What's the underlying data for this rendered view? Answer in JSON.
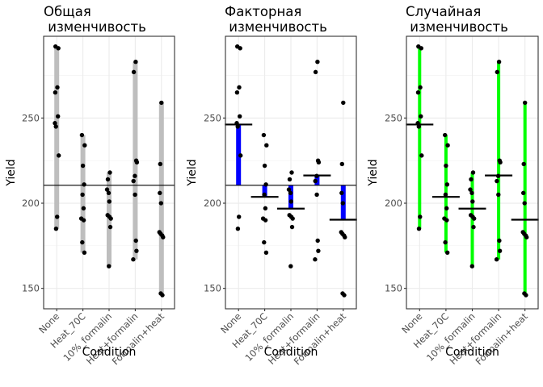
{
  "chart_data": {
    "type": "scatter",
    "categories": [
      "None",
      "Heat_70C",
      "10%_formalin",
      "Heat+formalin",
      "Formalin+heat"
    ],
    "xlabel": "Condition",
    "ylabel": "Yield",
    "ylim": [
      138,
      298
    ],
    "yticks": [
      150,
      200,
      250
    ],
    "grand_mean": 210.5,
    "panels": [
      {
        "title_line1": "Общая",
        "title_line2": " изменчивость",
        "variant": "total",
        "segment_color": "#bebebe"
      },
      {
        "title_line1": "Факторная",
        "title_line2": " изменчивость",
        "variant": "factor",
        "segment_color": "#0000ff"
      },
      {
        "title_line1": "Случайная",
        "title_line2": " изменчивость",
        "variant": "random",
        "segment_color": "#00ff00"
      }
    ],
    "group_means": [
      246.2,
      203.7,
      196.8,
      216.3,
      190.3
    ],
    "points": [
      [
        292,
        291,
        268,
        265,
        251,
        247,
        245,
        228,
        192,
        185
      ],
      [
        240,
        234,
        222,
        211,
        205,
        197,
        191,
        190,
        177,
        171
      ],
      [
        218,
        214,
        208,
        206,
        201,
        193,
        192,
        191,
        186,
        163
      ],
      [
        283,
        277,
        225,
        224,
        216,
        213,
        205,
        178,
        172,
        167
      ],
      [
        259,
        223,
        206,
        200,
        183,
        182,
        181,
        180,
        147,
        146
      ]
    ],
    "grid": true,
    "legend": "none"
  }
}
